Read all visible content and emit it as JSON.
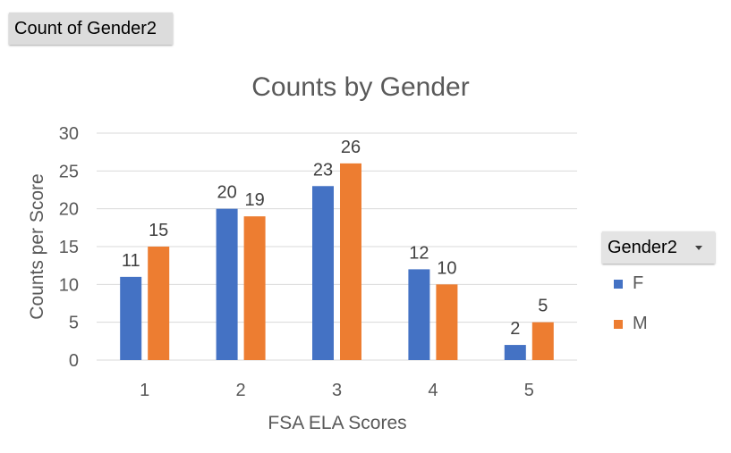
{
  "pivot_field_button": "Count of Gender2",
  "legend": {
    "title": "Gender2",
    "items": [
      {
        "label": "F",
        "color": "#4472C4"
      },
      {
        "label": "M",
        "color": "#ED7D31"
      }
    ]
  },
  "chart_data": {
    "type": "bar",
    "title": "Counts by Gender",
    "xlabel": "FSA ELA Scores",
    "ylabel": "Counts per Score",
    "categories": [
      "1",
      "2",
      "3",
      "4",
      "5"
    ],
    "series": [
      {
        "name": "F",
        "color": "#4472C4",
        "values": [
          11,
          20,
          23,
          12,
          2
        ]
      },
      {
        "name": "M",
        "color": "#ED7D31",
        "values": [
          15,
          19,
          26,
          10,
          5
        ]
      }
    ],
    "ylim": [
      0,
      30
    ],
    "yticks": [
      0,
      5,
      10,
      15,
      20,
      25,
      30
    ],
    "grid": true,
    "legend_position": "right"
  }
}
